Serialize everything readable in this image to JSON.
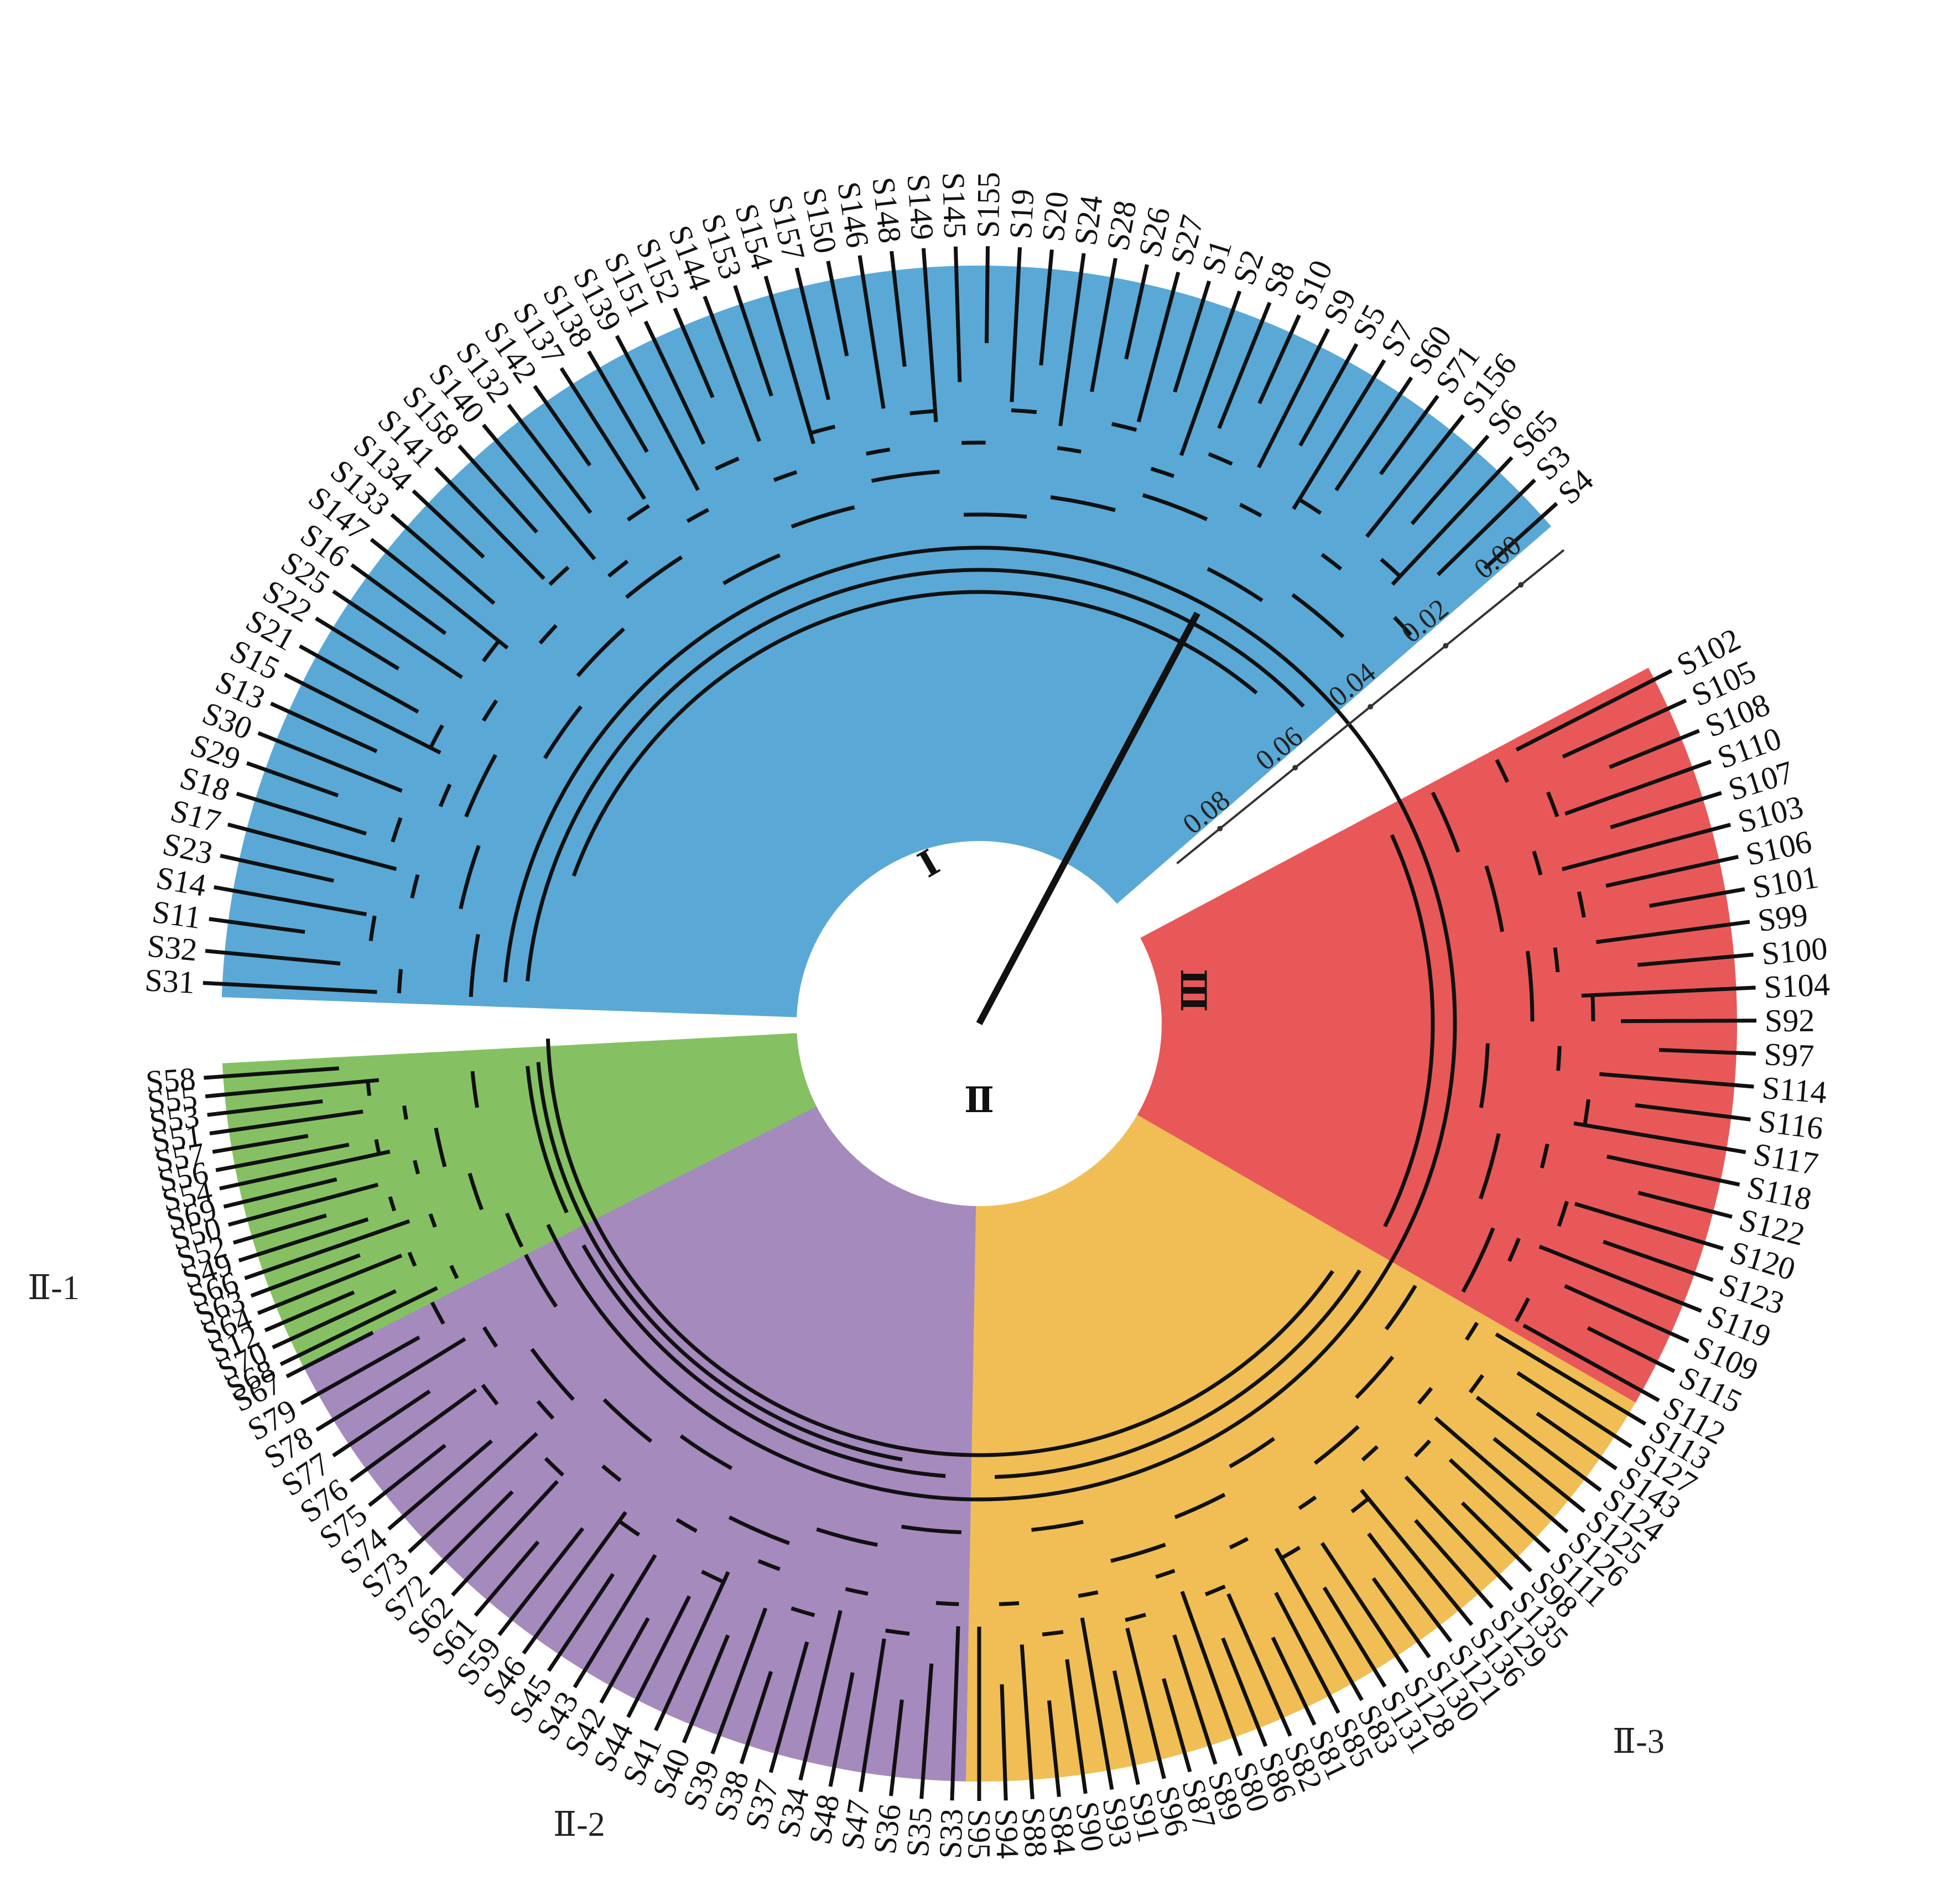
{
  "sectors": [
    {
      "id": "blue",
      "color": "#5aa8d6",
      "labels": [
        "S31",
        "S32",
        "S11",
        "S14",
        "S23",
        "S17",
        "S18",
        "S29",
        "S30",
        "S13",
        "S15",
        "S21",
        "S22",
        "S25",
        "S16",
        "S147",
        "S133",
        "S134",
        "S141",
        "S158",
        "S140",
        "S132",
        "S142",
        "S137",
        "S138",
        "S139",
        "S151",
        "S152",
        "S144",
        "S153",
        "S154",
        "S157",
        "S150",
        "S146",
        "S148",
        "S149",
        "S145",
        "S155",
        "S19",
        "S20",
        "S24",
        "S28",
        "S26",
        "S27",
        "S1",
        "S2",
        "S8",
        "S10",
        "S9",
        "S5",
        "S7",
        "S60",
        "S71",
        "S156",
        "S6",
        "S65",
        "S3",
        "S4"
      ]
    },
    {
      "id": "red",
      "color": "#e95858",
      "labels": [
        "S102",
        "S105",
        "S108",
        "S110",
        "S107",
        "S103",
        "S106",
        "S101",
        "S99",
        "S100",
        "S104",
        "S92",
        "S97",
        "S114",
        "S116",
        "S117",
        "S118",
        "S122",
        "S120",
        "S123",
        "S119",
        "S109",
        "S115",
        "S112"
      ]
    },
    {
      "id": "yellow",
      "color": "#f0be55",
      "labels": [
        "S113",
        "S127",
        "S143",
        "S124",
        "S125",
        "S126",
        "S111",
        "S98",
        "S135",
        "S129",
        "S136",
        "S121",
        "S130",
        "S128",
        "S131",
        "S83",
        "S85",
        "S81",
        "S82",
        "S86",
        "S80",
        "S89",
        "S87",
        "S96",
        "S91",
        "S93",
        "S90",
        "S84",
        "S88",
        "S94",
        "S95"
      ]
    },
    {
      "id": "purple",
      "color": "#a58abd",
      "labels": [
        "S33",
        "S35",
        "S36",
        "S47",
        "S48",
        "S34",
        "S37",
        "S38",
        "S39",
        "S40",
        "S41",
        "S44",
        "S42",
        "S43",
        "S45",
        "S46",
        "S59",
        "S61",
        "S62",
        "S72",
        "S73",
        "S74",
        "S75",
        "S76",
        "S77",
        "S78",
        "S79",
        "S67"
      ]
    },
    {
      "id": "green",
      "color": "#85c163",
      "labels": [
        "S68",
        "S70",
        "S12",
        "S64",
        "S63",
        "S66",
        "S49",
        "S52",
        "S50",
        "S69",
        "S54",
        "S56",
        "S57",
        "S51",
        "S53",
        "S55",
        "S58"
      ]
    }
  ],
  "clade_labels": {
    "c1": "Ⅰ",
    "c2": "Ⅱ",
    "c3": "Ⅲ"
  },
  "subgroup_labels": {
    "ii1": "Ⅱ-1",
    "ii2": "Ⅱ-2",
    "ii3": "Ⅱ-3"
  },
  "scale": {
    "ticks": [
      "0.08",
      "0.06",
      "0.04",
      "0.02",
      "0.00"
    ]
  }
}
